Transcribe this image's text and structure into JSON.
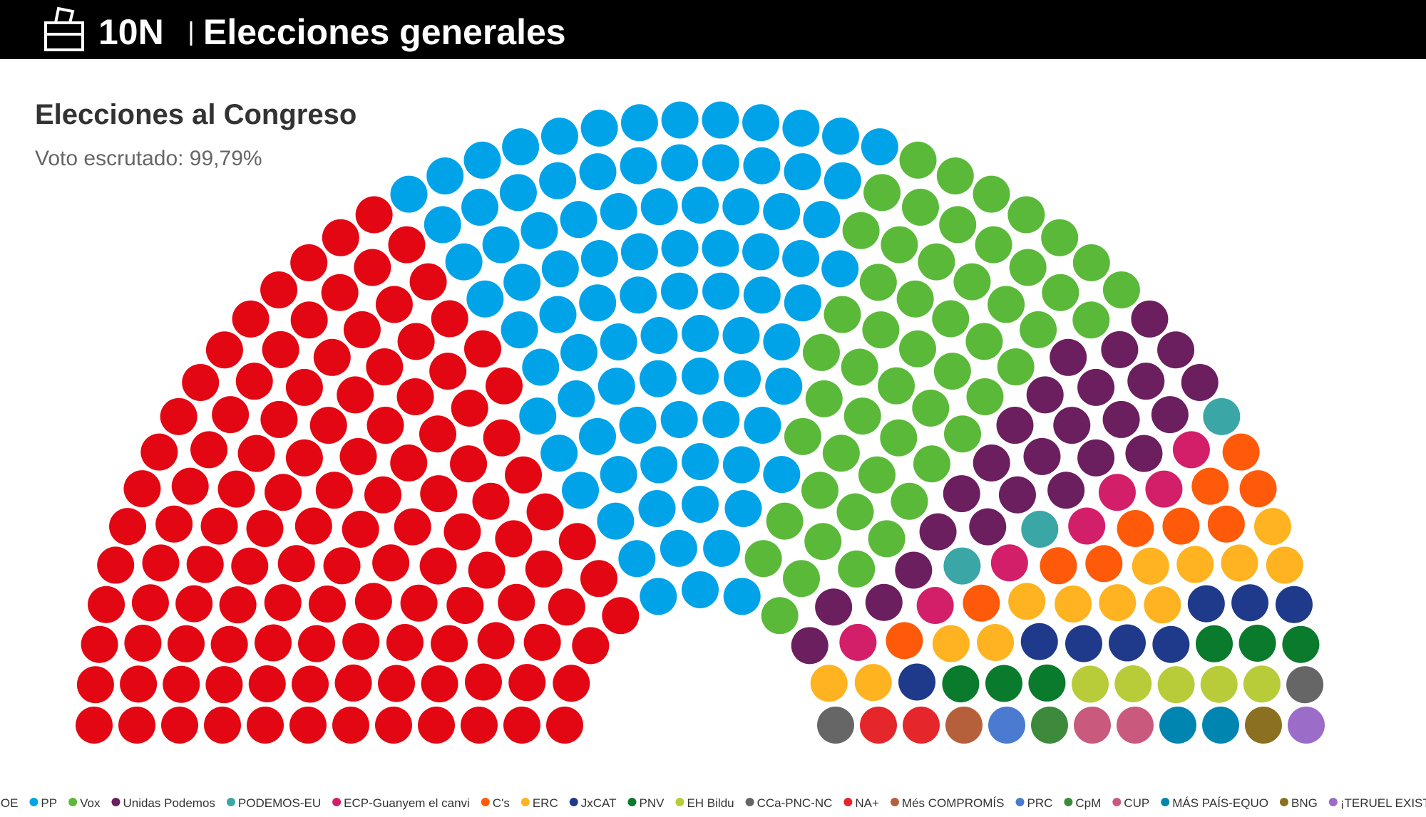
{
  "header": {
    "title": "10N",
    "subtitle": "Elecciones generales"
  },
  "chart_data": {
    "type": "parliament",
    "title": "Elecciones al Congreso",
    "subtitle": "Voto escrutado: 99,79%",
    "series": [
      {
        "name": "PSOE",
        "color": "#e30613",
        "values": 120
      },
      {
        "name": "PP",
        "color": "#00a3e8",
        "values": 88
      },
      {
        "name": "Vox",
        "color": "#5bb93a",
        "values": 52
      },
      {
        "name": "Unidas Podemos",
        "color": "#6b1f5f",
        "values": 25
      },
      {
        "name": "PODEMOS-EU",
        "color": "#3aa6a6",
        "values": 3
      },
      {
        "name": "ECP-Guanyem el canvi",
        "color": "#d31f6a",
        "values": 7
      },
      {
        "name": "C's",
        "color": "#ff5a0a",
        "values": 10
      },
      {
        "name": "ERC",
        "color": "#ffb320",
        "values": 13
      },
      {
        "name": "JxCAT",
        "color": "#1f3a8a",
        "values": 8
      },
      {
        "name": "PNV",
        "color": "#0a7a2c",
        "values": 6
      },
      {
        "name": "EH Bildu",
        "color": "#b8cc3a",
        "values": 5
      },
      {
        "name": "CCa-PNC-NC",
        "color": "#666666",
        "values": 2
      },
      {
        "name": "NA+",
        "color": "#e5262a",
        "values": 2
      },
      {
        "name": "Més COMPROMÍS",
        "color": "#b5603a",
        "values": 1
      },
      {
        "name": "PRC",
        "color": "#4a7bd0",
        "values": 1
      },
      {
        "name": "CpM",
        "color": "#3d8a3d",
        "values": 1
      },
      {
        "name": "CUP",
        "color": "#c95a7e",
        "values": 2
      },
      {
        "name": "MÁS PAÍS-EQUO",
        "color": "#0085b0",
        "values": 2
      },
      {
        "name": "BNG",
        "color": "#8a7020",
        "values": 1
      },
      {
        "name": "¡TERUEL EXISTE!",
        "color": "#9b6cc8",
        "values": 1
      }
    ]
  }
}
